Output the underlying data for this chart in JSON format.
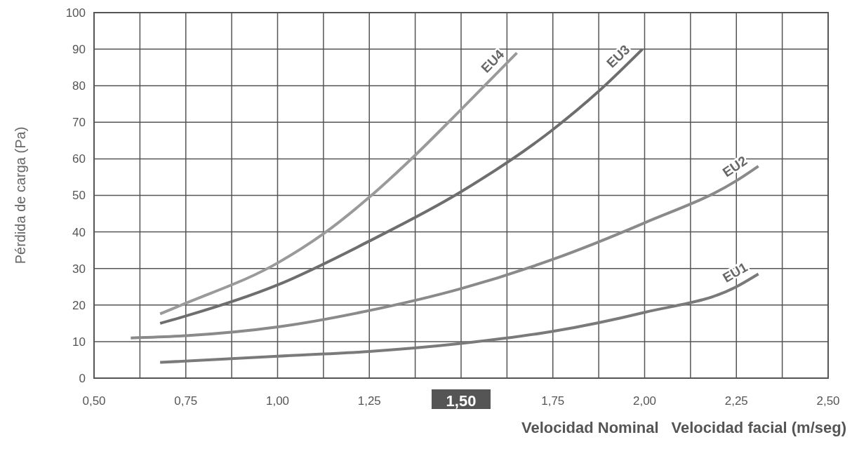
{
  "chart_data": {
    "type": "line",
    "ylabel": "Pérdida de carga (Pa)",
    "xlabel": "Velocidad facial (m/seg)",
    "annotations": [
      "Velocidad Nominal"
    ],
    "xlim": [
      0.5,
      2.5
    ],
    "xticks": [
      {
        "value": 0.5,
        "label": "0,50"
      },
      {
        "value": 0.625,
        "label": null
      },
      {
        "value": 0.75,
        "label": "0,75"
      },
      {
        "value": 0.875,
        "label": null
      },
      {
        "value": 1,
        "label": "1,00"
      },
      {
        "value": 1.125,
        "label": null
      },
      {
        "value": 1.25,
        "label": "1,25"
      },
      {
        "value": 1.375,
        "label": null
      },
      {
        "value": 1.5,
        "label": "1,50"
      },
      {
        "value": 1.625,
        "label": null
      },
      {
        "value": 1.75,
        "label": "1,75"
      },
      {
        "value": 1.875,
        "label": null
      },
      {
        "value": 2,
        "label": "2,00"
      },
      {
        "value": 2.125,
        "label": null
      },
      {
        "value": 2.25,
        "label": "2,25"
      },
      {
        "value": 2.375,
        "label": null
      },
      {
        "value": 2.5,
        "label": "2,50"
      }
    ],
    "ylim": [
      0,
      100
    ],
    "yticks": [
      0,
      10,
      20,
      30,
      40,
      50,
      60,
      70,
      80,
      90,
      100
    ],
    "grid": true,
    "marker": "none",
    "line_style": "solid",
    "series": [
      {
        "name": "EU1",
        "color": "#7a7a7a",
        "x": [
          0.68,
          1,
          1.25,
          1.5,
          1.75,
          2,
          2.25,
          2.31
        ],
        "values": [
          4.3,
          6,
          7.3,
          9.5,
          12.8,
          18,
          25,
          28.5
        ]
      },
      {
        "name": "EU2",
        "color": "#8a8a8a",
        "x": [
          0.6,
          0.75,
          1,
          1.25,
          1.5,
          1.75,
          2,
          2.25,
          2.31
        ],
        "values": [
          11,
          11.6,
          14,
          18.5,
          24.5,
          32.5,
          42.5,
          54,
          58
        ]
      },
      {
        "name": "EU3",
        "color": "#6e6e6e",
        "x": [
          0.68,
          0.75,
          1,
          1.25,
          1.5,
          1.75,
          1.875,
          1.994
        ],
        "values": [
          15,
          17,
          25.5,
          37.5,
          51,
          68,
          78.5,
          90
        ]
      },
      {
        "name": "EU4",
        "color": "#9a9a9a",
        "x": [
          0.68,
          0.75,
          1,
          1.125,
          1.25,
          1.375,
          1.5,
          1.652
        ],
        "values": [
          17.6,
          20.5,
          31.5,
          39.5,
          49.5,
          61,
          73.5,
          89
        ]
      }
    ]
  }
}
